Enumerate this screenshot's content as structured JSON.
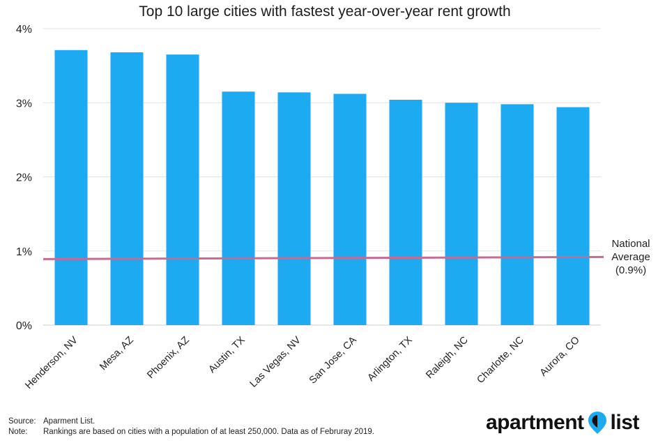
{
  "chart_data": {
    "type": "bar",
    "title": "Top 10 large cities with fastest year-over-year rent growth",
    "xlabel": "",
    "ylabel": "",
    "ylim": [
      0,
      4
    ],
    "yticks": [
      "0%",
      "1%",
      "2%",
      "3%",
      "4%"
    ],
    "grid": true,
    "categories": [
      "Henderson, NV",
      "Mesa, AZ",
      "Phoenix, AZ",
      "Austin, TX",
      "Las Vegas, NV",
      "San Jose, CA",
      "Arlington, TX",
      "Raleigh, NC",
      "Charlotte, NC",
      "Aurora, CO"
    ],
    "values": [
      3.71,
      3.68,
      3.65,
      3.15,
      3.14,
      3.12,
      3.04,
      3.0,
      2.98,
      2.94
    ],
    "reference_line": {
      "value": 0.9,
      "label_lines": [
        "National",
        "Average",
        "(0.9%)"
      ]
    }
  },
  "colors": {
    "bar": "#1eaaf0",
    "reference_line": "#c86b93",
    "grid": "#e3e3e3",
    "logo_accent": "#1eaaf0"
  },
  "footer": {
    "source_key": "Source:",
    "source_text": "Aparment List.",
    "note_key": "Note:",
    "note_text": "Rankings are based on cities with a population of at least 250,000. Data as of Februray 2019."
  },
  "logo": {
    "word1": "apartment",
    "word2": "list",
    "icon": "map-pin-icon"
  }
}
